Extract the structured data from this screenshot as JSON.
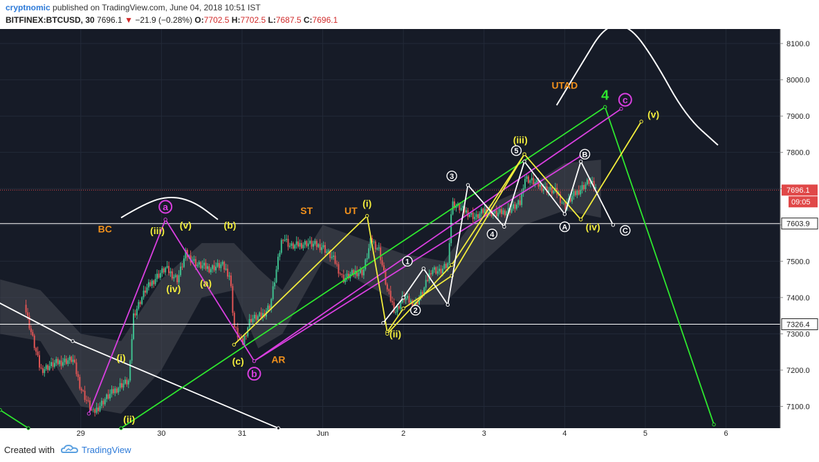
{
  "header": {
    "author": "cryptnomic",
    "published": "published on TradingView.com, June 04, 2018 10:51 IST",
    "symbol": "BITFINEX:BTCUSD, 30",
    "last": "7696.1",
    "change_arrow": "▼",
    "change": "−21.9 (−0.28%)",
    "o_label": "O:",
    "o": "7702.5",
    "h_label": "H:",
    "h": "7702.5",
    "l_label": "L:",
    "l": "7687.5",
    "c_label": "C:",
    "c": "7696.1"
  },
  "footer": {
    "created": "Created with",
    "brand": "TradingView"
  },
  "colors": {
    "background": "#161b27",
    "grid": "#232a38",
    "bull": "#3fbf8f",
    "bear": "#e05555",
    "cloud": "#4a4d55",
    "yellow": "#f2ec3c",
    "magenta": "#d93fe0",
    "green": "#2ee82e",
    "white": "#ffffff",
    "orange": "#f0901c",
    "price_tag": "#e04848"
  },
  "chart_data": {
    "type": "candlestick",
    "symbol": "BTCUSD",
    "exchange": "BITFINEX",
    "interval": "30",
    "ylim": [
      7040,
      8140
    ],
    "y_ticks": [
      "7100.0",
      "7200.0",
      "7300.0",
      "7400.0",
      "7500.0",
      "7600.0",
      "7700.0",
      "7800.0",
      "7900.0",
      "8000.0",
      "8100.0"
    ],
    "x_ticks": [
      "29",
      "30",
      "31",
      "Jun",
      "2",
      "3",
      "4",
      "5",
      "6"
    ],
    "grid": true,
    "price_labels": [
      {
        "value": 7696.1,
        "text": "7696.1",
        "style": "last"
      },
      {
        "value": 7603.9,
        "text": "7603.9",
        "style": "level"
      },
      {
        "value": 7326.4,
        "text": "7326.4",
        "style": "level"
      }
    ],
    "countdown": "09:05",
    "last_price": 7696.1,
    "horizontal_levels": [
      7603.9,
      7326.4
    ],
    "series_path": [
      [
        28.3,
        7380
      ],
      [
        28.5,
        7200
      ],
      [
        28.7,
        7220
      ],
      [
        28.9,
        7230
      ],
      [
        29.0,
        7150
      ],
      [
        29.15,
        7080
      ],
      [
        29.3,
        7120
      ],
      [
        29.5,
        7160
      ],
      [
        29.6,
        7170
      ],
      [
        29.65,
        7350
      ],
      [
        29.8,
        7420
      ],
      [
        29.95,
        7460
      ],
      [
        30.05,
        7480
      ],
      [
        30.2,
        7450
      ],
      [
        30.3,
        7520
      ],
      [
        30.45,
        7490
      ],
      [
        30.6,
        7480
      ],
      [
        30.75,
        7490
      ],
      [
        30.85,
        7460
      ],
      [
        30.9,
        7320
      ],
      [
        31.0,
        7270
      ],
      [
        31.1,
        7340
      ],
      [
        31.25,
        7350
      ],
      [
        31.35,
        7380
      ],
      [
        31.5,
        7570
      ],
      [
        31.6,
        7540
      ],
      [
        31.8,
        7550
      ],
      [
        32.0,
        7540
      ],
      [
        32.15,
        7500
      ],
      [
        32.25,
        7450
      ],
      [
        32.4,
        7470
      ],
      [
        32.5,
        7470
      ],
      [
        32.6,
        7560
      ],
      [
        32.7,
        7530
      ],
      [
        32.8,
        7420
      ],
      [
        32.9,
        7360
      ],
      [
        33.0,
        7400
      ],
      [
        33.15,
        7380
      ],
      [
        33.25,
        7420
      ],
      [
        33.35,
        7480
      ],
      [
        33.45,
        7470
      ],
      [
        33.55,
        7490
      ],
      [
        33.6,
        7660
      ],
      [
        33.75,
        7640
      ],
      [
        33.9,
        7620
      ],
      [
        34.0,
        7640
      ],
      [
        34.15,
        7630
      ],
      [
        34.3,
        7640
      ],
      [
        34.45,
        7660
      ],
      [
        34.5,
        7730
      ],
      [
        34.6,
        7720
      ],
      [
        34.75,
        7700
      ],
      [
        34.9,
        7690
      ],
      [
        35.0,
        7650
      ],
      [
        35.1,
        7680
      ],
      [
        35.2,
        7700
      ],
      [
        35.3,
        7720
      ],
      [
        35.4,
        7696
      ]
    ],
    "cloud_band": [
      [
        28.0,
        7450,
        7300
      ],
      [
        28.5,
        7420,
        7280
      ],
      [
        29.0,
        7300,
        7100
      ],
      [
        29.5,
        7280,
        7080
      ],
      [
        30.0,
        7450,
        7200
      ],
      [
        30.5,
        7550,
        7400
      ],
      [
        30.9,
        7550,
        7420
      ],
      [
        31.2,
        7480,
        7260
      ],
      [
        31.5,
        7420,
        7300
      ],
      [
        32.0,
        7600,
        7500
      ],
      [
        32.5,
        7560,
        7440
      ],
      [
        33.0,
        7520,
        7380
      ],
      [
        33.5,
        7500,
        7380
      ],
      [
        34.0,
        7650,
        7500
      ],
      [
        34.5,
        7700,
        7600
      ],
      [
        35.0,
        7770,
        7640
      ],
      [
        35.45,
        7780,
        7620
      ]
    ],
    "trendlines": [
      {
        "color": "white",
        "points": [
          [
            27.95,
            7390
          ],
          [
            28.9,
            7280
          ],
          [
            31.45,
            7040
          ]
        ]
      },
      {
        "color": "green",
        "points": [
          [
            28.0,
            7090
          ],
          [
            28.35,
            7040
          ]
        ]
      },
      {
        "color": "green",
        "points": [
          [
            29.5,
            7040
          ],
          [
            35.5,
            7925
          ]
        ]
      },
      {
        "color": "green",
        "points": [
          [
            35.5,
            7925
          ],
          [
            36.85,
            7050
          ]
        ]
      },
      {
        "color": "magenta",
        "points": [
          [
            29.1,
            7080
          ],
          [
            30.05,
            7615
          ],
          [
            31.15,
            7225
          ],
          [
            35.7,
            7920
          ]
        ]
      },
      {
        "color": "magenta",
        "points": [
          [
            31.15,
            7225
          ],
          [
            35.2,
            7790
          ]
        ]
      },
      {
        "color": "yellow",
        "points": [
          [
            30.9,
            7270
          ],
          [
            32.55,
            7625
          ],
          [
            32.8,
            7305
          ],
          [
            33.0,
            7370
          ],
          [
            33.6,
            7460
          ],
          [
            34.5,
            7795
          ],
          [
            35.2,
            7615
          ],
          [
            35.95,
            7885
          ]
        ]
      },
      {
        "color": "yellow",
        "points": [
          [
            32.8,
            7300
          ],
          [
            33.6,
            7490
          ],
          [
            34.5,
            7795
          ]
        ]
      },
      {
        "color": "white",
        "points": [
          [
            32.75,
            7330
          ],
          [
            33.0,
            7400
          ],
          [
            33.25,
            7480
          ],
          [
            33.55,
            7380
          ],
          [
            33.8,
            7710
          ],
          [
            34.25,
            7595
          ],
          [
            34.5,
            7775
          ],
          [
            35.0,
            7630
          ],
          [
            35.2,
            7775
          ],
          [
            35.6,
            7600
          ]
        ]
      }
    ],
    "arcs": [
      {
        "name": "top-arc",
        "points": [
          [
            34.9,
            7930
          ],
          [
            35.2,
            8040
          ],
          [
            35.5,
            8150
          ],
          [
            35.8,
            8150
          ],
          [
            36.1,
            8060
          ],
          [
            36.5,
            7900
          ],
          [
            36.9,
            7820
          ]
        ]
      },
      {
        "name": "left-arc",
        "points": [
          [
            29.5,
            7620
          ],
          [
            29.8,
            7660
          ],
          [
            30.1,
            7680
          ],
          [
            30.4,
            7665
          ],
          [
            30.7,
            7615
          ]
        ]
      }
    ],
    "wave_labels": [
      {
        "text": "(i)",
        "x": 29.5,
        "y": 7225,
        "color": "yellow"
      },
      {
        "text": "(ii)",
        "x": 29.6,
        "y": 7055,
        "color": "yellow"
      },
      {
        "text": "(iii)",
        "x": 29.95,
        "y": 7575,
        "color": "yellow"
      },
      {
        "text": "(iv)",
        "x": 30.15,
        "y": 7415,
        "color": "yellow"
      },
      {
        "text": "(v)",
        "x": 30.3,
        "y": 7590,
        "color": "yellow"
      },
      {
        "text": "(a)",
        "x": 30.55,
        "y": 7430,
        "color": "yellow"
      },
      {
        "text": "(b)",
        "x": 30.85,
        "y": 7590,
        "color": "yellow"
      },
      {
        "text": "(c)",
        "x": 30.95,
        "y": 7215,
        "color": "yellow"
      },
      {
        "text": "(i)",
        "x": 32.55,
        "y": 7650,
        "color": "yellow"
      },
      {
        "text": "(ii)",
        "x": 32.9,
        "y": 7290,
        "color": "yellow"
      },
      {
        "text": "(iii)",
        "x": 34.45,
        "y": 7825,
        "color": "yellow"
      },
      {
        "text": "(iv)",
        "x": 35.35,
        "y": 7585,
        "color": "yellow"
      },
      {
        "text": "(v)",
        "x": 36.1,
        "y": 7895,
        "color": "yellow"
      },
      {
        "text": "BC",
        "x": 29.3,
        "y": 7580,
        "color": "orange"
      },
      {
        "text": "ST",
        "x": 31.8,
        "y": 7630,
        "color": "orange"
      },
      {
        "text": "UT",
        "x": 32.35,
        "y": 7630,
        "color": "orange"
      },
      {
        "text": "AR",
        "x": 31.45,
        "y": 7220,
        "color": "orange"
      },
      {
        "text": "UTAD",
        "x": 35.0,
        "y": 7975,
        "color": "orange"
      },
      {
        "text": "4",
        "x": 35.5,
        "y": 7945,
        "color": "green"
      }
    ],
    "circle_labels": [
      {
        "text": "a",
        "x": 30.05,
        "y": 7650,
        "color": "magenta"
      },
      {
        "text": "b",
        "x": 31.15,
        "y": 7190,
        "color": "magenta"
      },
      {
        "text": "c",
        "x": 35.75,
        "y": 7945,
        "color": "magenta"
      },
      {
        "text": "1",
        "x": 33.05,
        "y": 7500,
        "color": "white"
      },
      {
        "text": "2",
        "x": 33.15,
        "y": 7365,
        "color": "white"
      },
      {
        "text": "3",
        "x": 33.6,
        "y": 7735,
        "color": "white"
      },
      {
        "text": "4",
        "x": 34.1,
        "y": 7575,
        "color": "white"
      },
      {
        "text": "5",
        "x": 34.4,
        "y": 7805,
        "color": "white"
      },
      {
        "text": "A",
        "x": 35.0,
        "y": 7595,
        "color": "white"
      },
      {
        "text": "B",
        "x": 35.25,
        "y": 7795,
        "color": "white"
      },
      {
        "text": "C",
        "x": 35.75,
        "y": 7585,
        "color": "white"
      }
    ]
  }
}
